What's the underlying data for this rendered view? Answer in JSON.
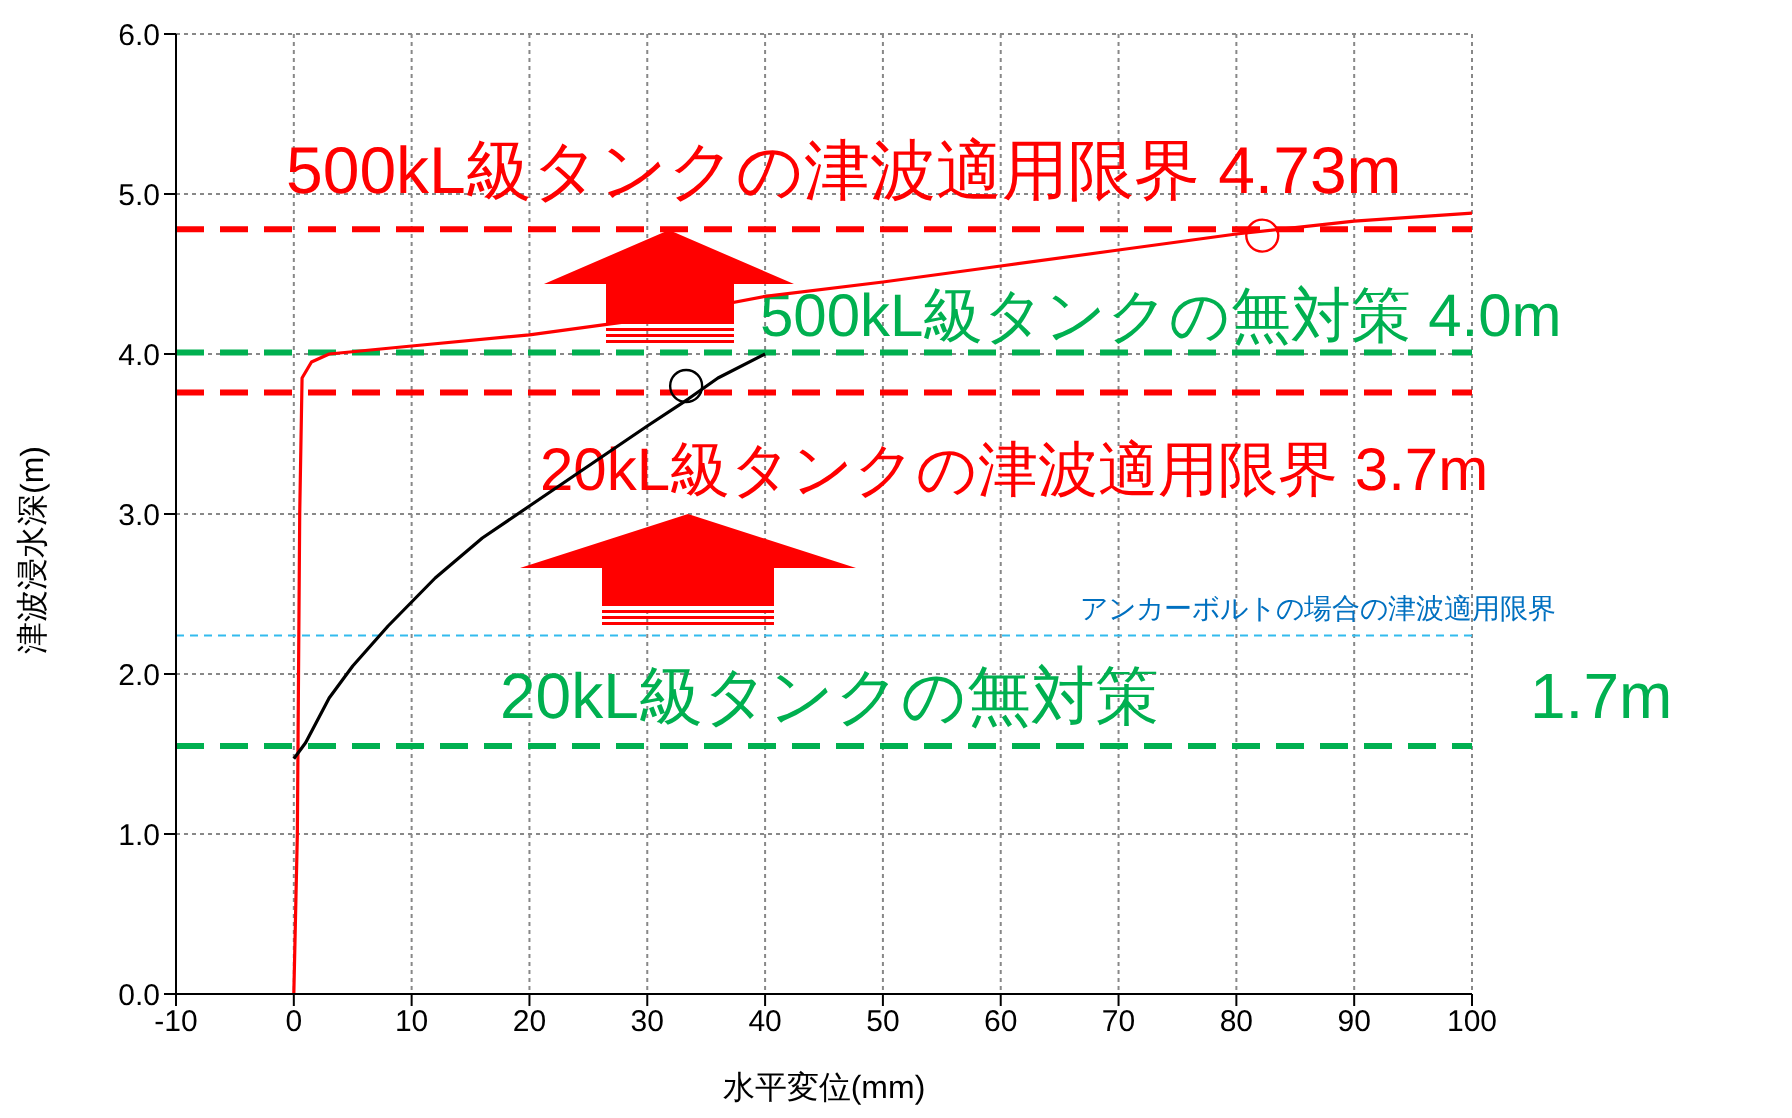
{
  "chart_data": {
    "type": "line",
    "xlabel": "水平変位(mm)",
    "ylabel": "津波浸水深(m)",
    "xlim": [
      -10,
      100
    ],
    "xticks": [
      -10,
      0,
      10,
      20,
      30,
      40,
      50,
      60,
      70,
      80,
      90,
      100
    ],
    "ylim": [
      0,
      6
    ],
    "yticks": [
      {
        "value": 0,
        "label": "0.0"
      },
      {
        "value": 1,
        "label": "1.0"
      },
      {
        "value": 2,
        "label": "2.0"
      },
      {
        "value": 3,
        "label": "3.0"
      },
      {
        "value": 4,
        "label": "4.0"
      },
      {
        "value": 5,
        "label": "5.0"
      },
      {
        "value": 6,
        "label": "6.0"
      }
    ],
    "grid": true,
    "marker": "none",
    "line_style": "solid",
    "series": [
      {
        "color": "#ff0000",
        "x": [
          0,
          0.3,
          0.5,
          0.7,
          1.5,
          3,
          10,
          20,
          30,
          40,
          50,
          60,
          70,
          80,
          90,
          100
        ],
        "values": [
          0,
          1,
          3,
          3.85,
          3.95,
          4,
          4.05,
          4.12,
          4.22,
          4.36,
          4.45,
          4.55,
          4.65,
          4.75,
          4.83,
          4.88
        ]
      },
      {
        "color": "#000000",
        "x": [
          0,
          1,
          3,
          5,
          8,
          12,
          16,
          20,
          25,
          30,
          33.5,
          36,
          40
        ],
        "values": [
          1.47,
          1.57,
          1.85,
          2.05,
          2.3,
          2.6,
          2.85,
          3.05,
          3.3,
          3.55,
          3.72,
          3.85,
          4.0
        ]
      },
      {
        "type": "scatter",
        "color": "#000000",
        "marker": "circle",
        "x": [
          33.3
        ],
        "values": [
          3.8
        ]
      },
      {
        "type": "scatter",
        "color": "#ff0000",
        "marker": "circle",
        "x": [
          82.2
        ],
        "values": [
          4.74
        ]
      }
    ],
    "ref_lines": [
      {
        "axis": "y",
        "value": 4.78,
        "label": "500kL級タンクの津波適用限界 4.73m",
        "color": "#ff0000",
        "line_style": "dashed"
      },
      {
        "axis": "y",
        "value": 4.01,
        "label": "500kL級タンクの無対策 4.0m",
        "color": "#00b050",
        "line_style": "dashed"
      },
      {
        "axis": "y",
        "value": 3.76,
        "label": "20kL級タンクの津波適用限界 3.7m",
        "color": "#ff0000",
        "line_style": "dashed"
      },
      {
        "axis": "y",
        "value": 2.24,
        "label": "アンカーボルトの場合の津波適用限界",
        "color": "#33bbee",
        "line_style": "dotted"
      },
      {
        "axis": "y",
        "value": 1.55,
        "label": "20kL級タンクの無対策 1.7m",
        "color": "#00b050",
        "line_style": "dashed"
      }
    ]
  }
}
